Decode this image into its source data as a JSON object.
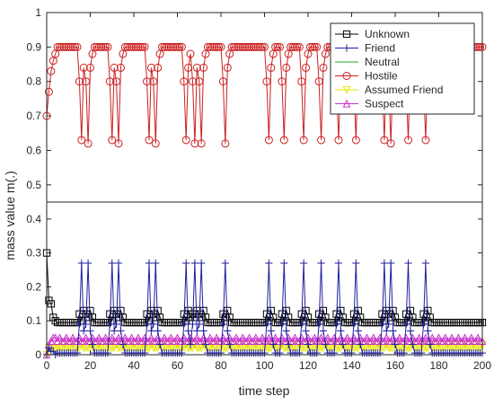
{
  "chart_data": {
    "type": "line",
    "xlabel": "time step",
    "ylabel": "mass value m(.)",
    "xlim": [
      0,
      200
    ],
    "ylim_upper": [
      0.45,
      1
    ],
    "ylim_lower": [
      0,
      0.45
    ],
    "x_ticks": [
      "0",
      "20",
      "40",
      "60",
      "80",
      "100",
      "120",
      "140",
      "160",
      "180",
      "200"
    ],
    "y_ticks_upper": [
      "0.5",
      "0.6",
      "0.7",
      "0.8",
      "0.9",
      "1"
    ],
    "y_ticks_lower": [
      "0",
      "0.1",
      "0.2",
      "0.3",
      "0.4"
    ],
    "grid": false,
    "legend_position": "top-right",
    "x_start": 0,
    "x_end": 200,
    "dips": [
      {
        "x": 16,
        "hostile": 0.63,
        "friend": 0.27,
        "unknown": 0.1
      },
      {
        "x": 19,
        "hostile": 0.62,
        "friend": 0.27,
        "unknown": 0.11
      },
      {
        "x": 30,
        "hostile": 0.63,
        "friend": 0.27,
        "unknown": 0.1
      },
      {
        "x": 33,
        "hostile": 0.62,
        "friend": 0.27,
        "unknown": 0.11
      },
      {
        "x": 47,
        "hostile": 0.63,
        "friend": 0.27,
        "unknown": 0.1
      },
      {
        "x": 50,
        "hostile": 0.62,
        "friend": 0.27,
        "unknown": 0.11
      },
      {
        "x": 64,
        "hostile": 0.63,
        "friend": 0.27,
        "unknown": 0.1
      },
      {
        "x": 68,
        "hostile": 0.62,
        "friend": 0.27,
        "unknown": 0.11
      },
      {
        "x": 71,
        "hostile": 0.62,
        "friend": 0.27,
        "unknown": 0.11
      },
      {
        "x": 82,
        "hostile": 0.62,
        "friend": 0.27,
        "unknown": 0.11
      },
      {
        "x": 102,
        "hostile": 0.63,
        "friend": 0.27,
        "unknown": 0.1
      },
      {
        "x": 109,
        "hostile": 0.63,
        "friend": 0.27,
        "unknown": 0.1
      },
      {
        "x": 118,
        "hostile": 0.63,
        "friend": 0.27,
        "unknown": 0.1
      },
      {
        "x": 126,
        "hostile": 0.63,
        "friend": 0.27,
        "unknown": 0.1
      },
      {
        "x": 134,
        "hostile": 0.63,
        "friend": 0.27,
        "unknown": 0.1
      },
      {
        "x": 142,
        "hostile": 0.63,
        "friend": 0.27,
        "unknown": 0.1
      },
      {
        "x": 155,
        "hostile": 0.63,
        "friend": 0.27,
        "unknown": 0.1
      },
      {
        "x": 158,
        "hostile": 0.62,
        "friend": 0.27,
        "unknown": 0.11
      },
      {
        "x": 166,
        "hostile": 0.63,
        "friend": 0.27,
        "unknown": 0.1
      },
      {
        "x": 174,
        "hostile": 0.63,
        "friend": 0.27,
        "unknown": 0.1
      }
    ],
    "baseline": {
      "hostile": 0.9,
      "unknown": 0.095,
      "friend": 0.005,
      "neutral": 0.0,
      "assumed_friend": 0.02,
      "suspect": 0.045
    },
    "initial": [
      {
        "x": 0,
        "hostile": 0.7,
        "unknown": 0.3,
        "friend": 0.0,
        "assumed_friend": 0.0,
        "suspect": 0.0
      },
      {
        "x": 1,
        "hostile": 0.77,
        "unknown": 0.16,
        "friend": 0.02,
        "assumed_friend": 0.02,
        "suspect": 0.03
      },
      {
        "x": 2,
        "hostile": 0.83,
        "unknown": 0.15,
        "friend": 0.01,
        "assumed_friend": 0.02,
        "suspect": 0.04
      },
      {
        "x": 3,
        "hostile": 0.86,
        "unknown": 0.11,
        "friend": 0.01,
        "assumed_friend": 0.02,
        "suspect": 0.05
      },
      {
        "x": 4,
        "hostile": 0.88,
        "unknown": 0.1,
        "friend": 0.0,
        "assumed_friend": 0.02,
        "suspect": 0.05
      }
    ],
    "series": [
      {
        "name": "Unknown",
        "color": "#000000",
        "marker": "square"
      },
      {
        "name": "Friend",
        "color": "#1f1fa0",
        "marker": "plus"
      },
      {
        "name": "Neutral",
        "color": "#22aa22",
        "marker": "none"
      },
      {
        "name": "Hostile",
        "color": "#cc2020",
        "marker": "circle"
      },
      {
        "name": "Assumed Friend",
        "color": "#e6e600",
        "marker": "triangle-down"
      },
      {
        "name": "Suspect",
        "color": "#cc33cc",
        "marker": "triangle-up"
      }
    ]
  }
}
